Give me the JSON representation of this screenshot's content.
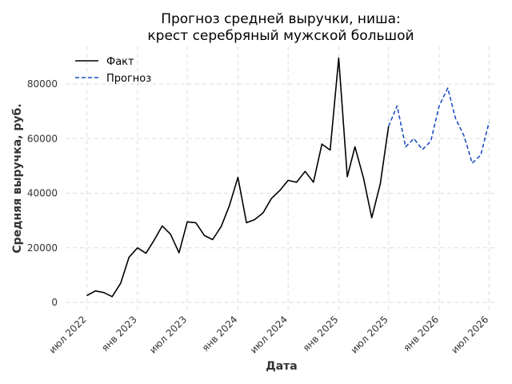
{
  "chart_data": {
    "type": "line",
    "title": [
      "Прогноз средней выручки, ниша:",
      "крест серебряный мужской большой"
    ],
    "xlabel": "Дата",
    "ylabel": "Средняя выручка, руб.",
    "ylim": [
      0,
      90000
    ],
    "y_ticks": [
      0,
      20000,
      40000,
      60000,
      80000
    ],
    "y_tick_labels": [
      "0",
      "20000",
      "40000",
      "60000",
      "80000"
    ],
    "x_range": [
      "2022-04-15",
      "2026-08-01"
    ],
    "x_ticks": [
      "2022-07-01",
      "2023-01-01",
      "2023-07-01",
      "2024-01-01",
      "2024-07-01",
      "2025-01-01",
      "2025-07-01",
      "2026-01-01",
      "2026-07-01"
    ],
    "x_tick_labels": [
      "июл 2022",
      "янв 2023",
      "июл 2023",
      "янв 2024",
      "июл 2024",
      "янв 2025",
      "июл 2025",
      "янв 2026",
      "июл 2026"
    ],
    "grid": true,
    "legend_position": "top-left",
    "series": [
      {
        "name": "Факт",
        "color": "#000000",
        "style": "solid",
        "x": [
          "2022-07-01",
          "2022-08-01",
          "2022-09-01",
          "2022-10-01",
          "2022-11-01",
          "2022-12-01",
          "2023-01-01",
          "2023-02-01",
          "2023-03-01",
          "2023-04-01",
          "2023-05-01",
          "2023-06-01",
          "2023-07-01",
          "2023-08-01",
          "2023-09-01",
          "2023-10-01",
          "2023-11-01",
          "2023-12-01",
          "2024-01-01",
          "2024-02-01",
          "2024-03-01",
          "2024-04-01",
          "2024-05-01",
          "2024-06-01",
          "2024-07-01",
          "2024-08-01",
          "2024-09-01",
          "2024-10-01",
          "2024-11-01",
          "2024-12-01",
          "2025-01-01",
          "2025-02-01",
          "2025-03-01",
          "2025-04-01",
          "2025-05-01",
          "2025-06-01",
          "2025-07-01"
        ],
        "values": [
          2500,
          4200,
          3600,
          2100,
          7000,
          16500,
          20000,
          18000,
          22500,
          28000,
          25000,
          18200,
          29500,
          29200,
          24500,
          23000,
          27800,
          35500,
          45800,
          29200,
          30300,
          32800,
          38000,
          41000,
          44700,
          44000,
          48000,
          44000,
          58000,
          55800,
          89500,
          46000,
          57000,
          45500,
          31000,
          43500,
          64500
        ]
      },
      {
        "name": "Прогноз",
        "color": "#1f4fbf",
        "style": "dashed",
        "x": [
          "2025-07-01",
          "2025-08-01",
          "2025-09-01",
          "2025-10-01",
          "2025-11-01",
          "2025-12-01",
          "2026-01-01",
          "2026-02-01",
          "2026-03-01",
          "2026-04-01",
          "2026-05-01",
          "2026-06-01",
          "2026-07-01"
        ],
        "values": [
          64500,
          72000,
          57000,
          60000,
          56000,
          59000,
          72000,
          78500,
          67500,
          61000,
          51000,
          54000,
          66000
        ]
      }
    ]
  }
}
